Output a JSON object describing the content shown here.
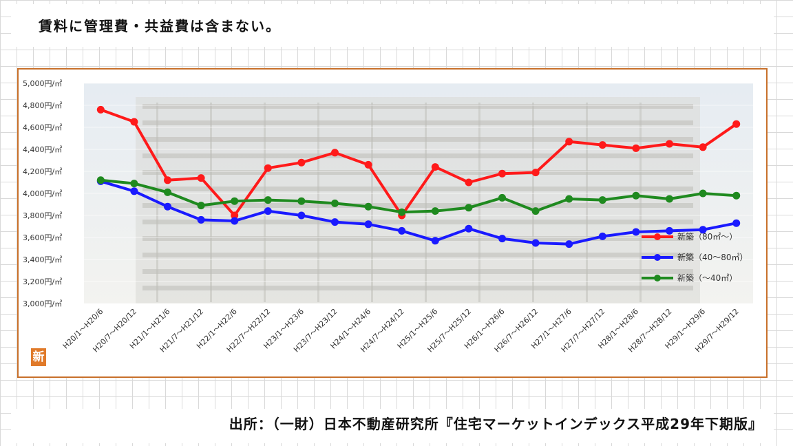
{
  "header": {
    "note": "賃料に管理費・共益費は含まない。"
  },
  "footer": {
    "source": "出所：（一財）日本不動産研究所『住宅マーケットインデックス平成29年下期版』"
  },
  "logo": {
    "text": "新"
  },
  "colors": {
    "frame": "#c8702a",
    "red": "#ff1a1a",
    "blue": "#1a1aff",
    "green": "#1f8a1f"
  },
  "chart_data": {
    "type": "line",
    "title": "",
    "xlabel": "",
    "ylabel": "",
    "ylim": [
      3000,
      5000
    ],
    "y_ticks": [
      {
        "value": 5000,
        "label": "5,000円/㎡"
      },
      {
        "value": 4800,
        "label": "4,800円/㎡"
      },
      {
        "value": 4600,
        "label": "4,600円/㎡"
      },
      {
        "value": 4400,
        "label": "4,400円/㎡"
      },
      {
        "value": 4200,
        "label": "4,200円/㎡"
      },
      {
        "value": 4000,
        "label": "4,000円/㎡"
      },
      {
        "value": 3800,
        "label": "3,800円/㎡"
      },
      {
        "value": 3600,
        "label": "3,600円/㎡"
      },
      {
        "value": 3400,
        "label": "3,400円/㎡"
      },
      {
        "value": 3200,
        "label": "3,200円/㎡"
      },
      {
        "value": 3000,
        "label": "3,000円/㎡"
      }
    ],
    "categories": [
      "H20/1～H20/6",
      "H20/7～H20/12",
      "H21/1～H21/6",
      "H21/7～H21/12",
      "H22/1～H22/6",
      "H22/7～H22/12",
      "H23/1～H23/6",
      "H23/7～H23/12",
      "H24/1～H24/6",
      "H24/7～H24/12",
      "H25/1～H25/6",
      "H25/7～H25/12",
      "H26/1～H26/6",
      "H26/7～H26/12",
      "H27/1～H27/6",
      "H27/7～H27/12",
      "H28/1～H28/6",
      "H28/7～H28/12",
      "H29/1～H29/6",
      "H29/7～H29/12"
    ],
    "series": [
      {
        "name": "新築（80㎡～）",
        "color": "#ff1a1a",
        "values": [
          4760,
          4650,
          4120,
          4140,
          3800,
          4230,
          4280,
          4370,
          4260,
          3800,
          4240,
          4100,
          4180,
          4190,
          4470,
          4440,
          4410,
          4450,
          4420,
          4630
        ]
      },
      {
        "name": "新築（40～80㎡）",
        "color": "#1a1aff",
        "values": [
          4110,
          4020,
          3880,
          3760,
          3750,
          3840,
          3800,
          3740,
          3720,
          3660,
          3570,
          3680,
          3590,
          3550,
          3540,
          3610,
          3650,
          3660,
          3670,
          3730
        ]
      },
      {
        "name": "新築（～40㎡）",
        "color": "#1f8a1f",
        "values": [
          4120,
          4090,
          4010,
          3890,
          3930,
          3940,
          3930,
          3910,
          3880,
          3830,
          3840,
          3870,
          3960,
          3840,
          3950,
          3940,
          3980,
          3950,
          4000,
          3980
        ]
      }
    ],
    "legend_position": "right"
  }
}
